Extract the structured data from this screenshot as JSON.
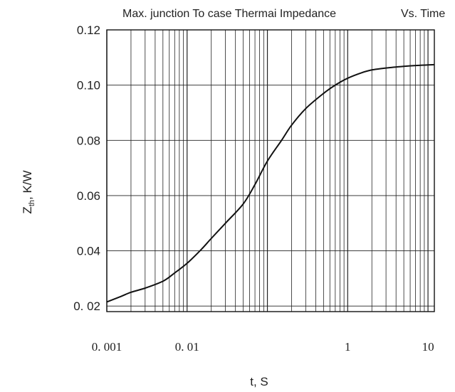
{
  "chart_data": {
    "type": "line",
    "title": "Max.  junction To case Thermai Impedance",
    "title_suffix": "Vs. Time",
    "xlabel": "t,  S",
    "ylabel_main": "Z",
    "ylabel_sub": "th",
    "ylabel_rest": ", K/W",
    "x_scale": "log",
    "xlim": [
      0.001,
      12
    ],
    "ylim": [
      0.018,
      0.12
    ],
    "x_ticks": [
      {
        "value": 0.001,
        "label": "0. 001"
      },
      {
        "value": 0.01,
        "label": "0. 01"
      },
      {
        "value": 1,
        "label": "1"
      },
      {
        "value": 10,
        "label": "10"
      }
    ],
    "y_ticks": [
      {
        "value": 0.12,
        "label": "0.12"
      },
      {
        "value": 0.1,
        "label": "0.10"
      },
      {
        "value": 0.08,
        "label": "0.08"
      },
      {
        "value": 0.06,
        "label": "0.06"
      },
      {
        "value": 0.04,
        "label": "0.04"
      },
      {
        "value": 0.02,
        "label": "0. 02"
      }
    ],
    "grid": true,
    "series": [
      {
        "x": [
          0.001,
          0.0015,
          0.002,
          0.003,
          0.005,
          0.007,
          0.01,
          0.015,
          0.02,
          0.03,
          0.05,
          0.07,
          0.1,
          0.15,
          0.2,
          0.3,
          0.5,
          0.7,
          1,
          1.5,
          2,
          3,
          5,
          7,
          10,
          12
        ],
        "y": [
          0.0215,
          0.0235,
          0.025,
          0.0265,
          0.029,
          0.032,
          0.0355,
          0.0405,
          0.0445,
          0.05,
          0.057,
          0.064,
          0.0725,
          0.08,
          0.0855,
          0.0915,
          0.097,
          0.1,
          0.1025,
          0.1045,
          0.1055,
          0.1062,
          0.1068,
          0.1071,
          0.1073,
          0.1074
        ]
      }
    ]
  }
}
